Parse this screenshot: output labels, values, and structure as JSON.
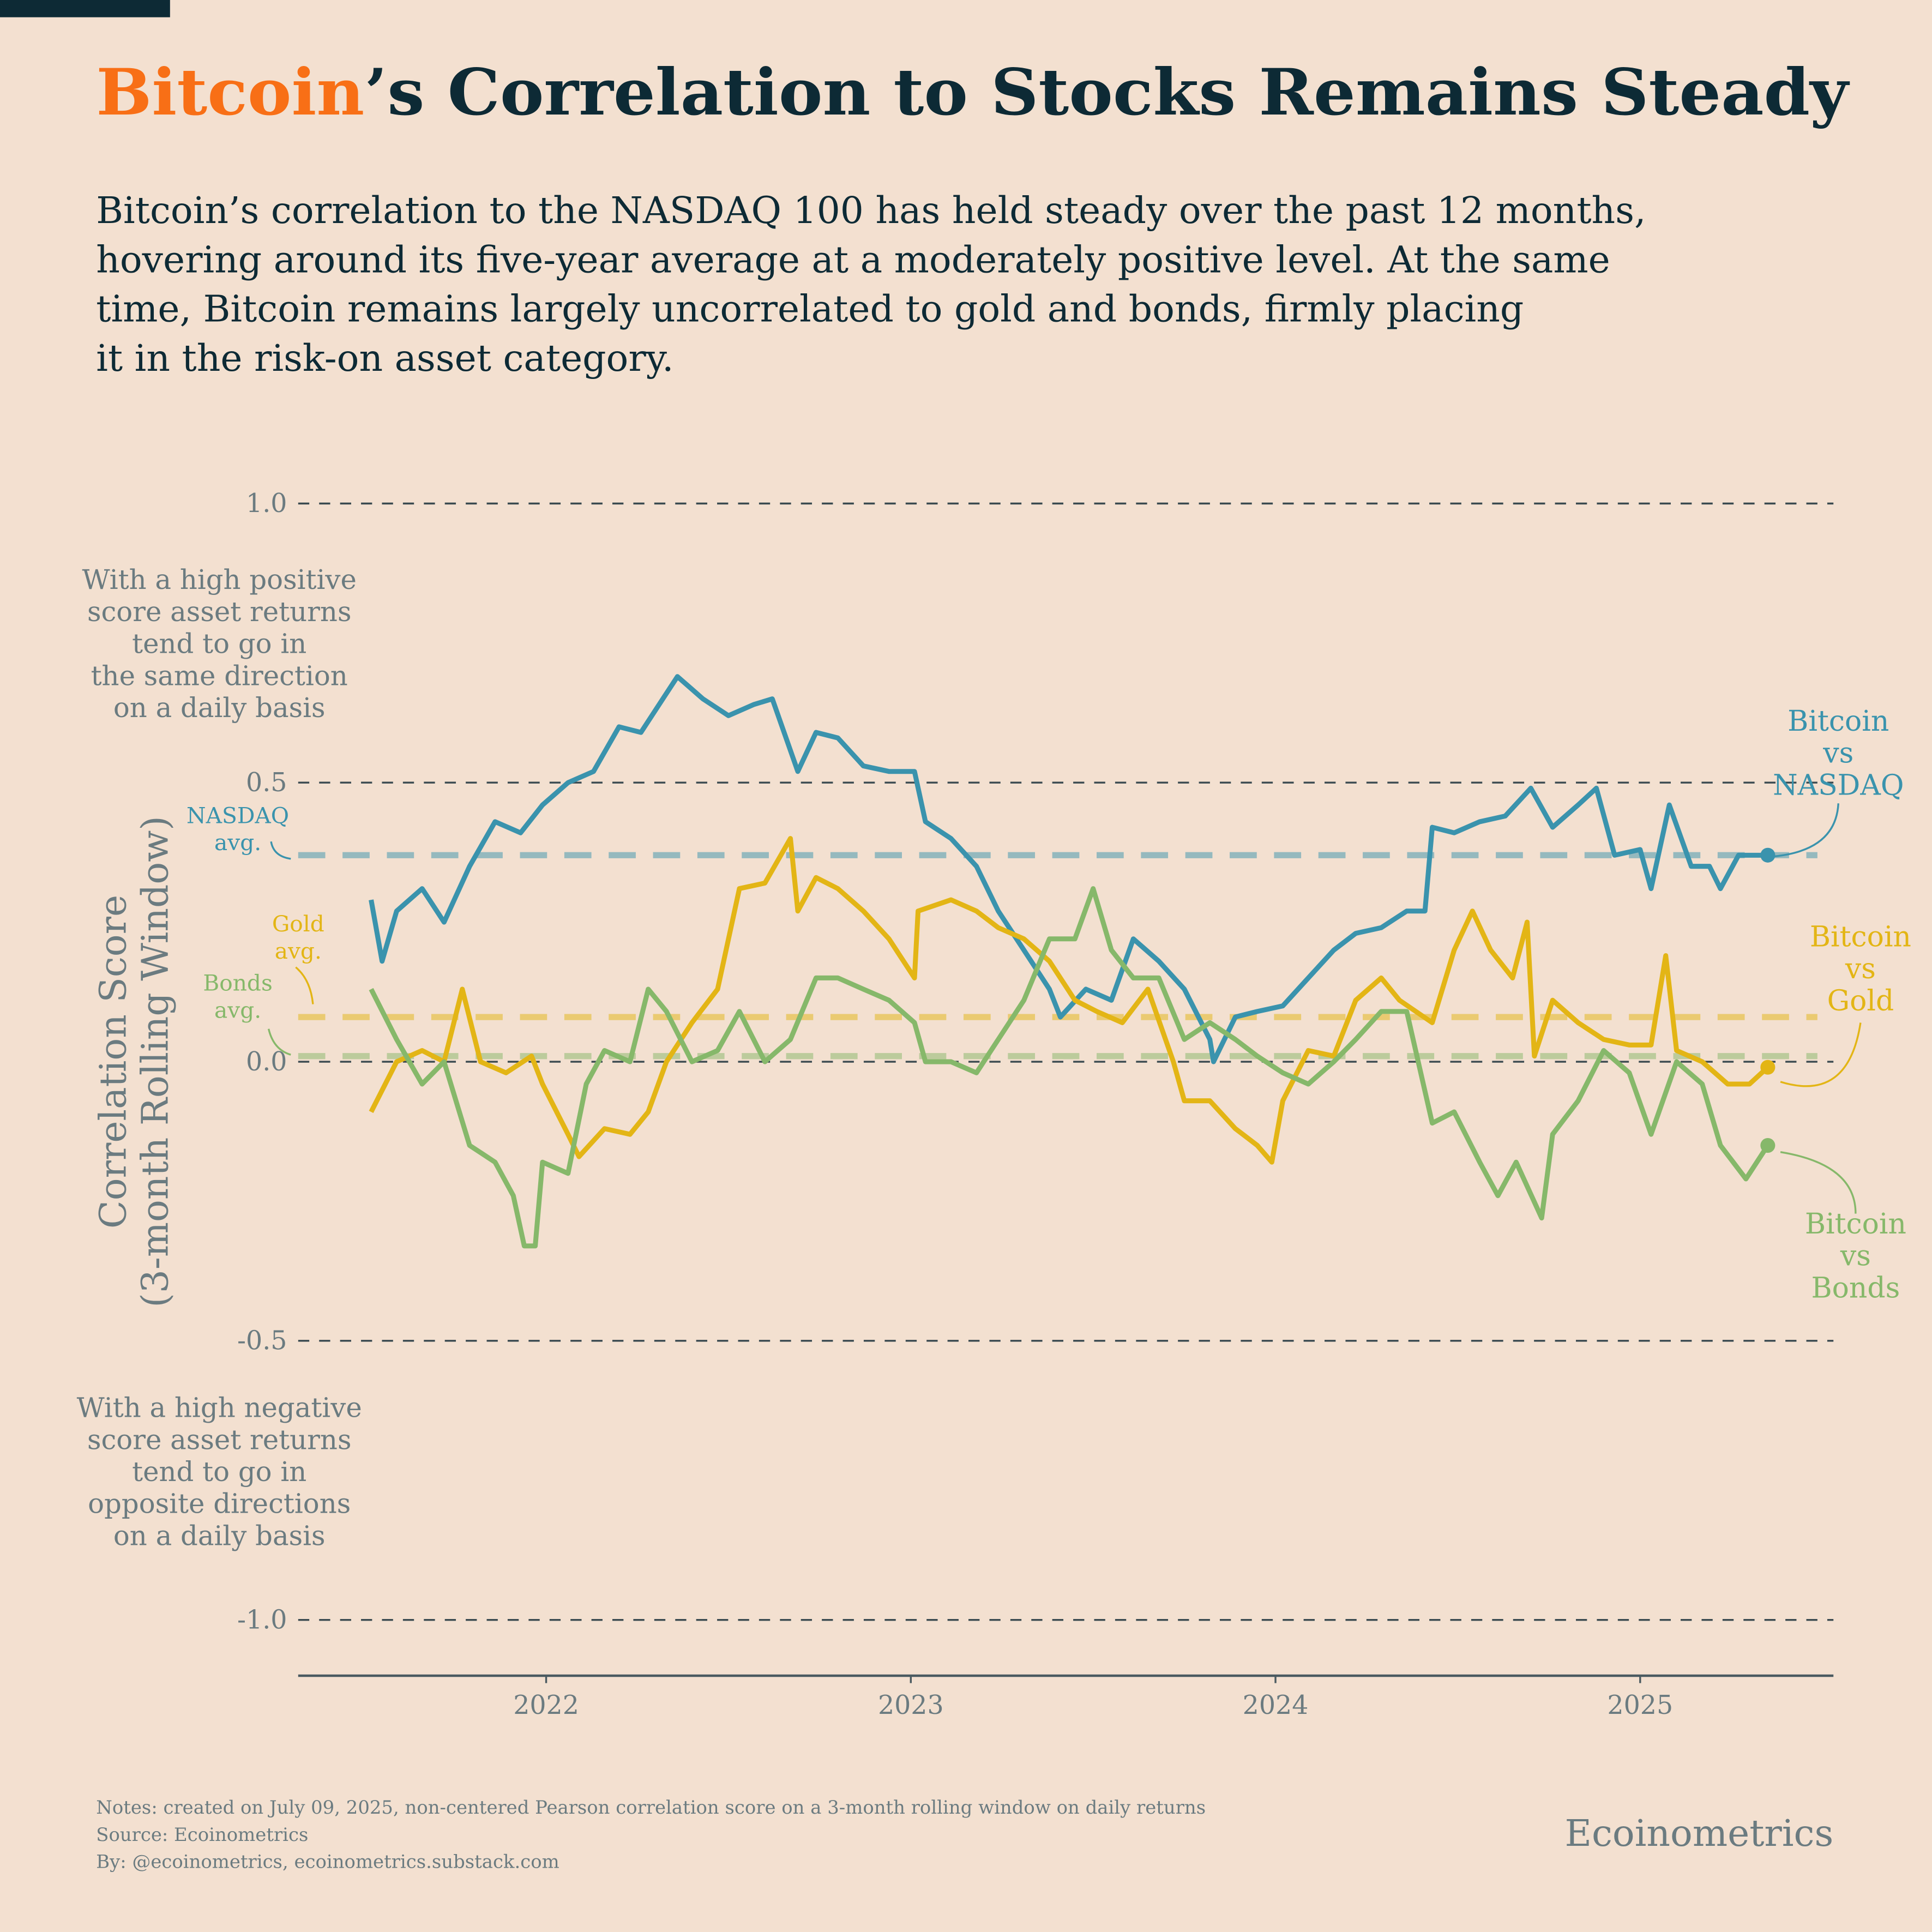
{
  "chart_data": {
    "type": "line",
    "title_parts": [
      "Bitcoin",
      "’s Correlation to Stocks Remains Steady"
    ],
    "subtitle": [
      "Bitcoin’s correlation to the NASDAQ 100 has held steady over the past 12 months,",
      "hovering around its five-year average at a moderately positive level. At the same",
      "time, Bitcoin remains largely uncorrelated to gold and bonds, firmly placing",
      "it in the risk-on asset category."
    ],
    "y_label": [
      "Correlation Score",
      "(3-month Rolling Window)"
    ],
    "positive_note": [
      "With a high positive",
      "score asset returns",
      "tend to go in",
      "the same direction",
      "on a daily basis"
    ],
    "negative_note": [
      "With a high negative",
      "score asset returns",
      "tend to go in",
      "opposite directions",
      "on a daily basis"
    ],
    "notes": [
      "Notes: created on July 09, 2025, non-centered Pearson correlation score on a 3-month rolling window on daily returns",
      "Source: Ecoinometrics",
      "By: @ecoinometrics, ecoinometrics.substack.com"
    ],
    "brand": "Ecoinometrics",
    "xlim": [
      2021.32,
      2025.53
    ],
    "xticks": [
      2022,
      2023,
      2024,
      2025
    ],
    "ylim": [
      -1.1,
      1.05
    ],
    "yticks": [
      {
        "value": 1,
        "label": "1.0"
      },
      0.5,
      {
        "value": 0,
        "label": "0.0"
      },
      -0.5,
      {
        "value": -1,
        "label": "-1.0"
      }
    ],
    "grid": true,
    "series": [
      {
        "label": [
          "Bitcoin",
          "vs",
          "NASDAQ"
        ],
        "avg_label": [
          "NASDAQ",
          "avg."
        ],
        "average": 0.37,
        "color": "#3a93ad",
        "x": [
          2021.52,
          2021.55,
          2021.59,
          2021.66,
          2021.72,
          2021.79,
          2021.86,
          2021.93,
          2021.99,
          2022.06,
          2022.13,
          2022.2,
          2022.26,
          2022.33,
          2022.36,
          2022.43,
          2022.5,
          2022.57,
          2022.62,
          2022.69,
          2022.74,
          2022.8,
          2022.87,
          2022.94,
          2023.01,
          2023.04,
          2023.11,
          2023.18,
          2023.24,
          2023.31,
          2023.38,
          2023.41,
          2023.48,
          2023.55,
          2023.61,
          2023.68,
          2023.75,
          2023.82,
          2023.83,
          2023.89,
          2023.95,
          2024.02,
          2024.09,
          2024.16,
          2024.22,
          2024.29,
          2024.36,
          2024.41,
          2024.43,
          2024.49,
          2024.56,
          2024.63,
          2024.7,
          2024.76,
          2024.83,
          2024.88,
          2024.93,
          2025.0,
          2025.03,
          2025.08,
          2025.14,
          2025.19,
          2025.22,
          2025.27,
          2025.35
        ],
        "values": [
          0.29,
          0.18,
          0.27,
          0.31,
          0.25,
          0.35,
          0.43,
          0.41,
          0.46,
          0.5,
          0.52,
          0.6,
          0.59,
          0.66,
          0.69,
          0.65,
          0.62,
          0.64,
          0.65,
          0.52,
          0.59,
          0.58,
          0.53,
          0.52,
          0.52,
          0.43,
          0.4,
          0.35,
          0.27,
          0.2,
          0.13,
          0.08,
          0.13,
          0.11,
          0.22,
          0.18,
          0.13,
          0.04,
          0.0,
          0.08,
          0.09,
          0.1,
          0.15,
          0.2,
          0.23,
          0.24,
          0.27,
          0.27,
          0.42,
          0.41,
          0.43,
          0.44,
          0.49,
          0.42,
          0.46,
          0.49,
          0.37,
          0.38,
          0.31,
          0.46,
          0.35,
          0.35,
          0.31,
          0.37,
          0.37
        ]
      },
      {
        "label": [
          "Bitcoin",
          "vs",
          "Gold"
        ],
        "avg_label": [
          "Gold",
          "avg."
        ],
        "average": 0.08,
        "color": "#e3b515",
        "x": [
          2021.52,
          2021.59,
          2021.66,
          2021.72,
          2021.77,
          2021.82,
          2021.89,
          2021.96,
          2021.99,
          2022.06,
          2022.09,
          2022.16,
          2022.23,
          2022.28,
          2022.33,
          2022.4,
          2022.47,
          2022.53,
          2022.6,
          2022.67,
          2022.69,
          2022.74,
          2022.8,
          2022.87,
          2022.94,
          2023.01,
          2023.02,
          2023.11,
          2023.18,
          2023.24,
          2023.31,
          2023.38,
          2023.45,
          2023.51,
          2023.58,
          2023.65,
          2023.72,
          2023.75,
          2023.82,
          2023.89,
          2023.95,
          2023.99,
          2024.02,
          2024.09,
          2024.16,
          2024.22,
          2024.29,
          2024.34,
          2024.43,
          2024.49,
          2024.54,
          2024.59,
          2024.65,
          2024.69,
          2024.71,
          2024.76,
          2024.83,
          2024.9,
          2024.97,
          2025.03,
          2025.07,
          2025.1,
          2025.17,
          2025.24,
          2025.3,
          2025.35
        ],
        "values": [
          -0.09,
          0,
          0.02,
          0,
          0.13,
          0,
          -0.02,
          0.01,
          -0.04,
          -0.13,
          -0.17,
          -0.12,
          -0.13,
          -0.09,
          0,
          0.07,
          0.13,
          0.31,
          0.32,
          0.4,
          0.27,
          0.33,
          0.31,
          0.27,
          0.22,
          0.15,
          0.27,
          0.29,
          0.27,
          0.24,
          0.22,
          0.18,
          0.11,
          0.09,
          0.07,
          0.13,
          0,
          -0.07,
          -0.07,
          -0.12,
          -0.15,
          -0.18,
          -0.07,
          0.02,
          0.01,
          0.11,
          0.15,
          0.11,
          0.07,
          0.2,
          0.27,
          0.2,
          0.15,
          0.25,
          0.01,
          0.11,
          0.07,
          0.04,
          0.03,
          0.03,
          0.19,
          0.02,
          0,
          -0.04,
          -0.04,
          -0.01
        ]
      },
      {
        "label": [
          "Bitcoin",
          "vs",
          "Bonds"
        ],
        "avg_label": [
          "Bonds",
          "avg."
        ],
        "average": 0.01,
        "color": "#86b86a",
        "x": [
          2021.52,
          2021.59,
          2021.66,
          2021.72,
          2021.79,
          2021.86,
          2021.91,
          2021.94,
          2021.97,
          2021.99,
          2022.06,
          2022.11,
          2022.16,
          2022.23,
          2022.28,
          2022.33,
          2022.4,
          2022.47,
          2022.53,
          2022.6,
          2022.67,
          2022.74,
          2022.8,
          2022.87,
          2022.94,
          2023.01,
          2023.04,
          2023.11,
          2023.18,
          2023.24,
          2023.31,
          2023.38,
          2023.45,
          2023.5,
          2023.55,
          2023.61,
          2023.68,
          2023.75,
          2023.82,
          2023.89,
          2023.95,
          2024.02,
          2024.09,
          2024.16,
          2024.22,
          2024.29,
          2024.36,
          2024.43,
          2024.49,
          2024.56,
          2024.61,
          2024.66,
          2024.73,
          2024.76,
          2024.83,
          2024.9,
          2024.97,
          2025.03,
          2025.1,
          2025.17,
          2025.22,
          2025.29,
          2025.35
        ],
        "values": [
          0.13,
          0.04,
          -0.04,
          0,
          -0.15,
          -0.18,
          -0.24,
          -0.33,
          -0.33,
          -0.18,
          -0.2,
          -0.04,
          0.02,
          0,
          0.13,
          0.09,
          0,
          0.02,
          0.09,
          0,
          0.04,
          0.15,
          0.15,
          0.13,
          0.11,
          0.07,
          0,
          0,
          -0.02,
          0.04,
          0.11,
          0.22,
          0.22,
          0.31,
          0.2,
          0.15,
          0.15,
          0.04,
          0.07,
          0.04,
          0.01,
          -0.02,
          -0.04,
          0,
          0.04,
          0.09,
          0.09,
          -0.11,
          -0.09,
          -0.18,
          -0.24,
          -0.18,
          -0.28,
          -0.13,
          -0.07,
          0.02,
          -0.02,
          -0.13,
          0,
          -0.04,
          -0.15,
          -0.21,
          -0.15
        ]
      }
    ]
  }
}
